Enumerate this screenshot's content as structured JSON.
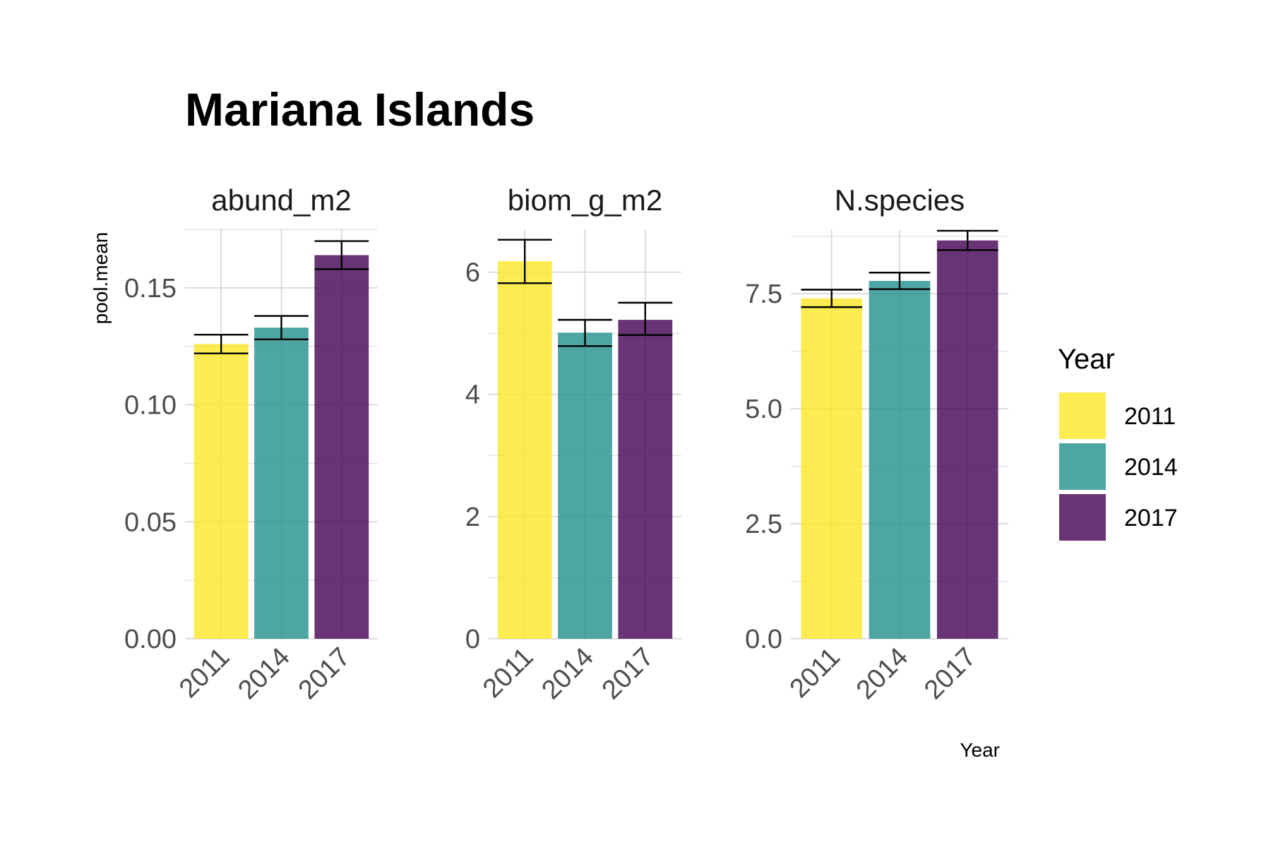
{
  "title": "Mariana Islands",
  "ylabel": "pool.mean",
  "xlabel": "Year",
  "chart_data": {
    "type": "bar",
    "title": "Mariana Islands",
    "xlabel": "Year",
    "ylabel": "pool.mean",
    "categories": [
      "2011",
      "2014",
      "2017"
    ],
    "legend": {
      "title": "Year",
      "position": "right",
      "entries": [
        "2011",
        "2014",
        "2017"
      ]
    },
    "colors": [
      "#FDE725",
      "#21908C",
      "#440154"
    ],
    "grid": true,
    "error_bars": true,
    "facets": [
      {
        "label": "abund_m2",
        "values": [
          0.126,
          0.133,
          0.164
        ],
        "error_low": [
          0.122,
          0.128,
          0.158
        ],
        "error_high": [
          0.13,
          0.138,
          0.17
        ],
        "ylim": [
          0,
          0.175
        ],
        "yticks": [
          "0.00",
          "0.05",
          "0.10",
          "0.15"
        ]
      },
      {
        "label": "biom_g_m2",
        "values": [
          6.18,
          5.01,
          5.22
        ],
        "error_low": [
          5.82,
          4.79,
          4.97
        ],
        "error_high": [
          6.53,
          5.22,
          5.5
        ],
        "ylim": [
          0,
          6.7
        ],
        "yticks": [
          "0",
          "2",
          "4",
          "6"
        ]
      },
      {
        "label": "N.species",
        "values": [
          7.4,
          7.78,
          8.66
        ],
        "error_low": [
          7.21,
          7.6,
          8.45
        ],
        "error_high": [
          7.59,
          7.96,
          8.87
        ],
        "ylim": [
          0,
          8.9
        ],
        "yticks": [
          "0.0",
          "2.5",
          "5.0",
          "7.5"
        ]
      }
    ]
  }
}
